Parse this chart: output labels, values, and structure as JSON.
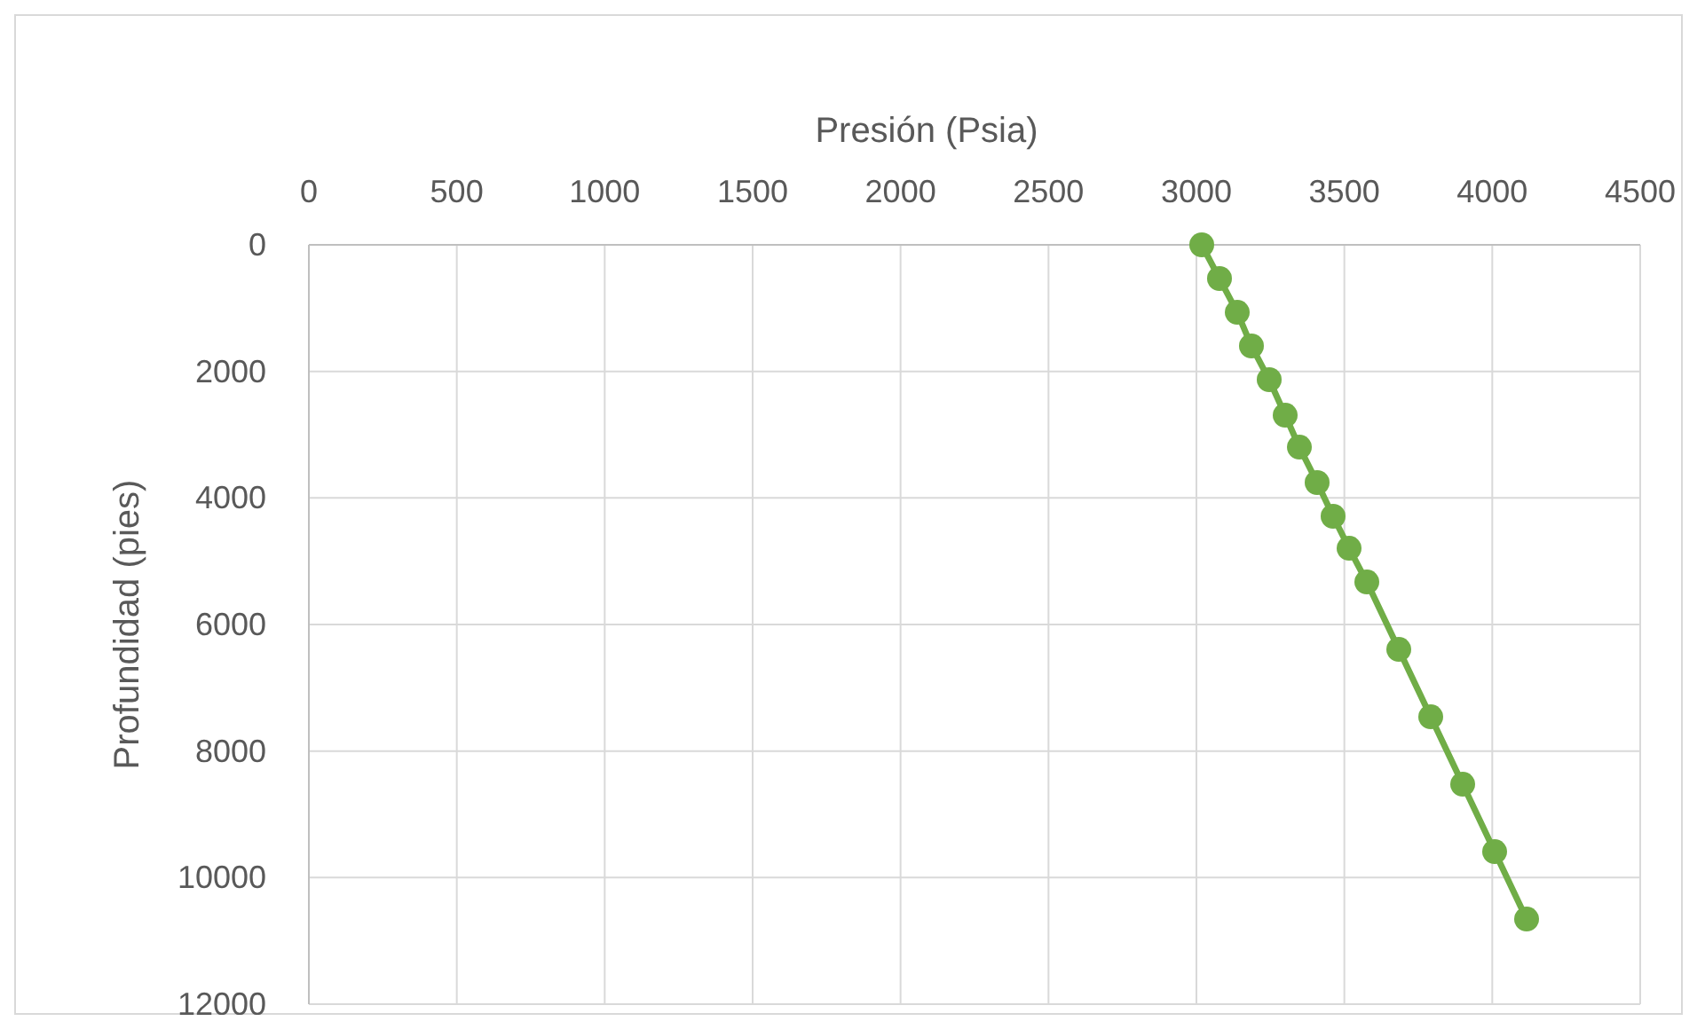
{
  "chart_data": {
    "type": "line",
    "xlabel": "Presión (Psia)",
    "ylabel": "Profundidad (pies)",
    "xlim": [
      0,
      4500
    ],
    "xticks": [
      0,
      500,
      1000,
      1500,
      2000,
      2500,
      3000,
      3500,
      4000,
      4500
    ],
    "ylim": [
      12000,
      0
    ],
    "yticks": [
      0,
      2000,
      4000,
      6000,
      8000,
      10000,
      12000
    ],
    "grid": true,
    "marker": "circle",
    "line_style": "solid",
    "series": [
      {
        "color": "#70ad47",
        "x": [
          3018,
          3078,
          3138,
          3186,
          3246,
          3300,
          3348,
          3408,
          3462,
          3516,
          3576,
          3684,
          3792,
          3900,
          4008,
          4116
        ],
        "values": [
          0,
          533,
          1066,
          1598,
          2131,
          2692,
          3197,
          3757,
          4290,
          4795,
          5328,
          6393,
          7459,
          8524,
          9590,
          10655
        ]
      }
    ]
  }
}
